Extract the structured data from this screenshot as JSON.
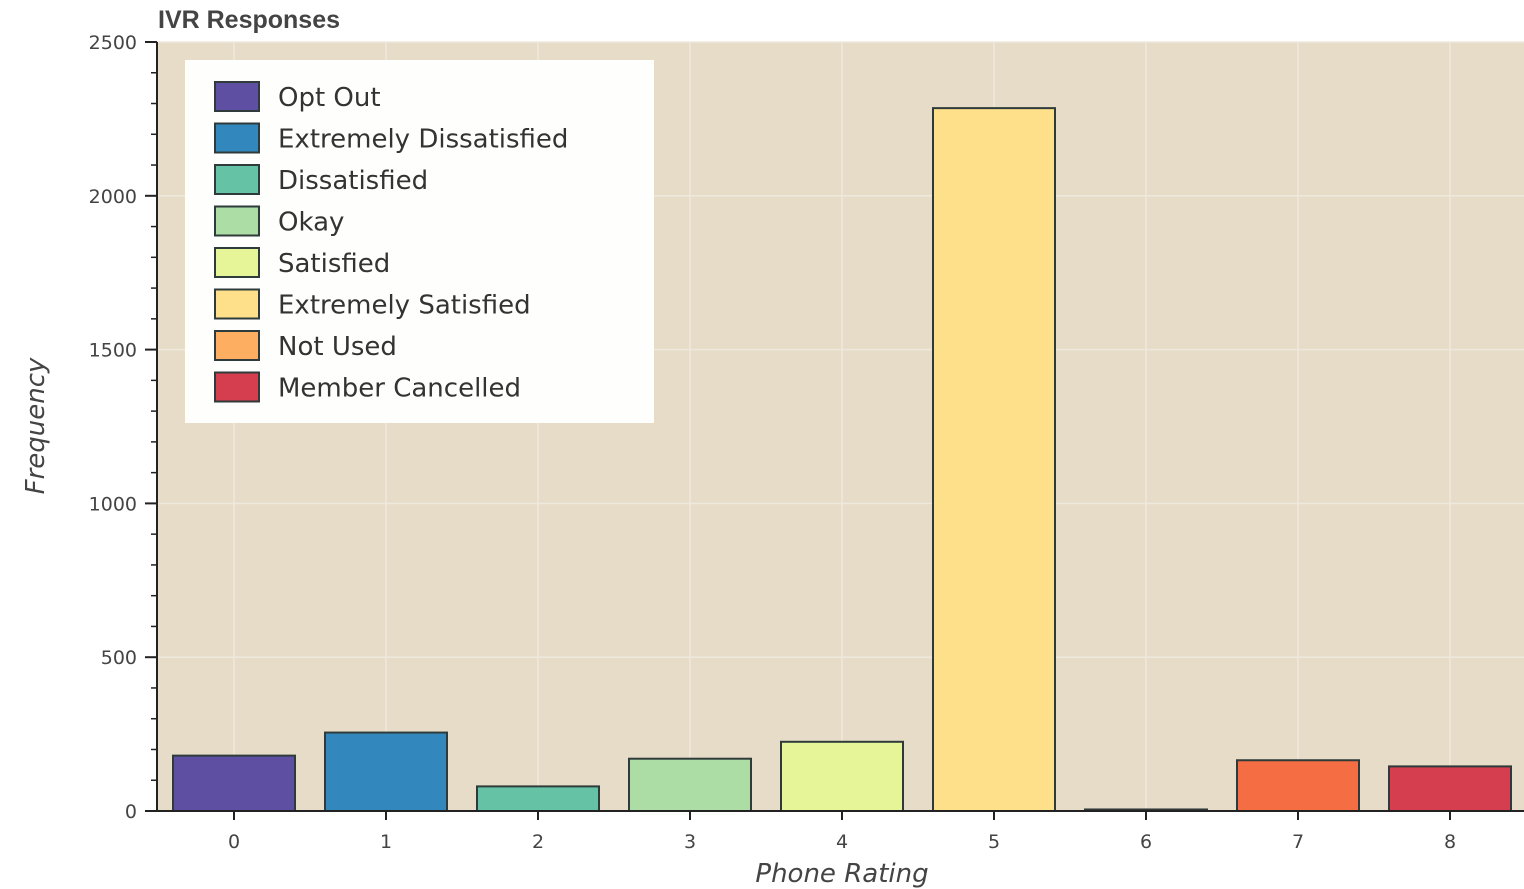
{
  "chart_data": {
    "type": "bar",
    "title": "IVR Responses",
    "xlabel": "Phone Rating",
    "ylabel": "Frequency",
    "categories": [
      "0",
      "1",
      "2",
      "3",
      "4",
      "5",
      "6",
      "7",
      "8"
    ],
    "values": [
      180,
      255,
      80,
      170,
      225,
      2285,
      5,
      165,
      145
    ],
    "colors": [
      "#5e4fa2",
      "#3288bd",
      "#66c2a5",
      "#abdda4",
      "#e6f598",
      "#fee08b",
      "#fdae61",
      "#f46d43",
      "#d53e4f"
    ],
    "ylim": [
      0,
      2500
    ],
    "yticks": [
      "0",
      "500",
      "1000",
      "1500",
      "2000",
      "2500"
    ],
    "grid": true,
    "legend_placement": "top-left",
    "legend": [
      {
        "label": "Opt Out",
        "color": "#5e4fa2"
      },
      {
        "label": "Extremely Dissatisfied",
        "color": "#3288bd"
      },
      {
        "label": "Dissatisfied",
        "color": "#66c2a5"
      },
      {
        "label": "Okay",
        "color": "#abdda4"
      },
      {
        "label": "Satisfied",
        "color": "#e6f598"
      },
      {
        "label": "Extremely Satisfied",
        "color": "#fee08b"
      },
      {
        "label": "Not Used",
        "color": "#fdae61"
      },
      {
        "label": "Member Cancelled",
        "color": "#d53e4f"
      }
    ],
    "plot_background": "#e6dcc8"
  }
}
